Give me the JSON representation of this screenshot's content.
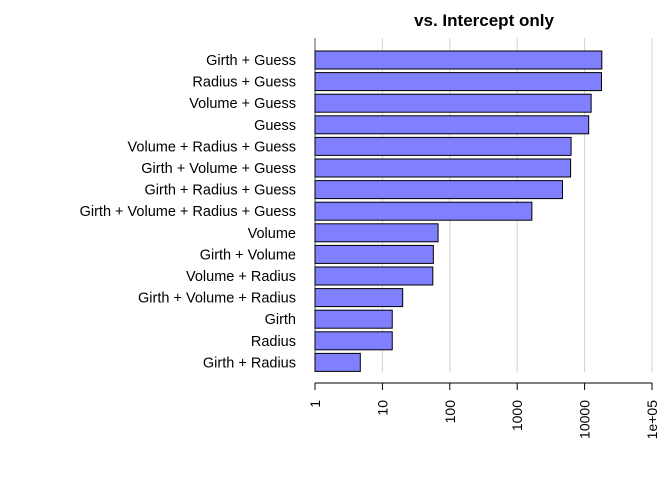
{
  "chart_data": {
    "type": "bar",
    "orientation": "horizontal",
    "title": "vs. Intercept only",
    "xlabel": "",
    "ylabel": "",
    "x_scale": "log10",
    "xlim": [
      1,
      100000
    ],
    "grid": "vertical",
    "bar_color": "#8080ff",
    "bar_edge_color": "#000000",
    "categories": [
      "Girth + Guess",
      "Radius + Guess",
      "Volume + Guess",
      "Guess",
      "Volume + Radius + Guess",
      "Girth + Volume + Guess",
      "Girth + Radius + Guess",
      "Girth + Volume + Radius + Guess",
      "Volume",
      "Girth + Volume",
      "Volume + Radius",
      "Girth + Volume + Radius",
      "Girth",
      "Radius",
      "Girth + Radius"
    ],
    "values": [
      18000,
      17800,
      12500,
      11500,
      6300,
      6200,
      4700,
      1650,
      67,
      57,
      56,
      20,
      14,
      14,
      4.7
    ],
    "ticks": [
      {
        "value": 1,
        "label": "1"
      },
      {
        "value": 10,
        "label": "10"
      },
      {
        "value": 100,
        "label": "100"
      },
      {
        "value": 1000,
        "label": "1000"
      },
      {
        "value": 10000,
        "label": "10000"
      },
      {
        "value": 100000,
        "label": "1e+05"
      }
    ]
  }
}
